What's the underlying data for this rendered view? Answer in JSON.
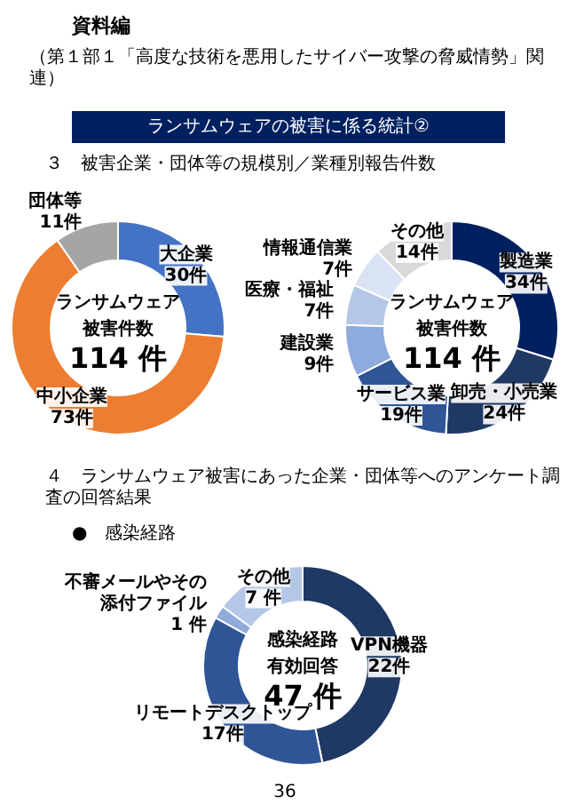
{
  "chart_data": [
    {
      "type": "donut",
      "title": "３　被害企業・団体等の規模別／業種別報告件数",
      "annotations": [
        "資料編",
        "（第１部１「高度な技術を悪用したサイバー攻撃の脅威情勢」関連）",
        "ランサムウェアの被害に係る統計②",
        "ランサムウェア",
        "被害件数",
        "114 件"
      ],
      "categories": [
        "大企業",
        "中小企業",
        "団体等"
      ],
      "values": [
        30,
        73,
        11
      ],
      "value_labels": [
        "30件",
        "73件",
        "11件"
      ],
      "colors": [
        "#4472c4",
        "#ed7d31",
        "#a5a5a5"
      ]
    },
    {
      "type": "donut",
      "annotations": [
        "ランサムウェア",
        "被害件数",
        "114 件"
      ],
      "categories": [
        "製造業",
        "卸売・小売業",
        "サービス業",
        "建設業",
        "医療・福祉",
        "情報通信業",
        "その他"
      ],
      "values": [
        34,
        24,
        19,
        9,
        7,
        7,
        14
      ],
      "value_labels": [
        "34件",
        "24件",
        "19件",
        "9件",
        "7件",
        "7件",
        "14件"
      ],
      "colors": [
        "#002060",
        "#203864",
        "#2f5597",
        "#8faadc",
        "#b4c7e7",
        "#dae3f3",
        "#d9d9d9"
      ]
    },
    {
      "type": "donut",
      "title": "４　ランサムウェア被害にあった企業・団体等へのアンケート調査の回答結果",
      "subtitle": "●　感染経路",
      "annotations": [
        "感染経路",
        "有効回答",
        "47 件",
        "36"
      ],
      "categories": [
        "VPN機器",
        "リモートデスクトップ",
        "不審メールやその添付ファイル",
        "その他"
      ],
      "values": [
        22,
        17,
        1,
        7
      ],
      "value_labels": [
        "22件",
        "17件",
        "1 件",
        "7 件"
      ],
      "colors": [
        "#1f3864",
        "#2f5597",
        "#8faadc",
        "#b4c7e7"
      ]
    }
  ]
}
